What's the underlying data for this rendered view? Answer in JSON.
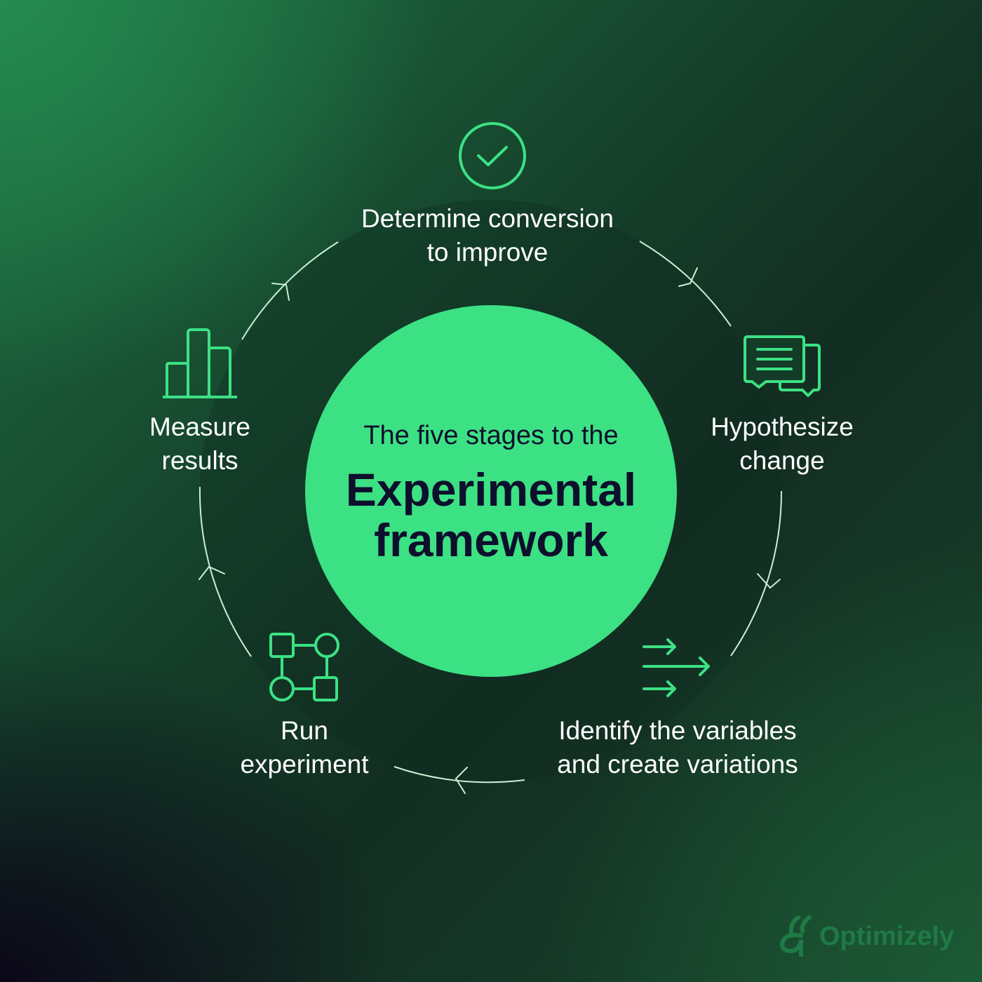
{
  "center": {
    "subtitle": "The five stages to the",
    "title_line1": "Experimental",
    "title_line2": "framework"
  },
  "stages": [
    {
      "line1": "Determine conversion",
      "line2": "to improve",
      "icon": "check-circle-icon"
    },
    {
      "line1": "Hypothesize",
      "line2": "change",
      "icon": "chat-bubbles-icon"
    },
    {
      "line1": "Identify the variables",
      "line2": "and create variations",
      "icon": "arrows-right-icon"
    },
    {
      "line1": "Run",
      "line2": "experiment",
      "icon": "flowchart-icon"
    },
    {
      "line1": "Measure",
      "line2": "results",
      "icon": "bar-chart-icon"
    }
  ],
  "brand": {
    "name": "Optimizely"
  },
  "colors": {
    "accent": "#3ce184",
    "center_text": "#0e0f2c",
    "ring_line": "#c9f0d4",
    "label_text": "#ffffff"
  }
}
